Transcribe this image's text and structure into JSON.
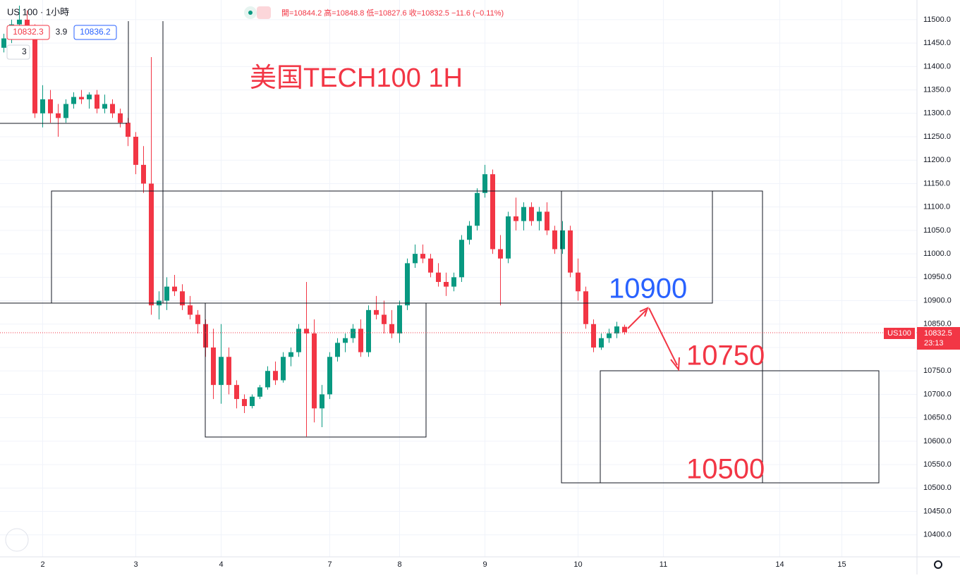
{
  "chart_data": {
    "type": "candlestick",
    "title": "美国TECH100 1H",
    "categories": [
      null,
      null,
      null,
      null,
      null,
      "2",
      null,
      null,
      null,
      null,
      null,
      null,
      null,
      null,
      null,
      null,
      null,
      "3",
      null,
      null,
      null,
      null,
      null,
      null,
      null,
      null,
      null,
      null,
      "4",
      null,
      null,
      null,
      null,
      null,
      null,
      null,
      null,
      null,
      null,
      null,
      null,
      null,
      "7",
      null,
      null,
      null,
      null,
      null,
      null,
      null,
      null,
      "8",
      null,
      null,
      null,
      null,
      null,
      null,
      null,
      null,
      null,
      null,
      "9",
      null,
      null,
      null,
      null,
      null,
      null,
      null,
      null,
      null,
      null,
      null,
      "10",
      null,
      null,
      null,
      null,
      null,
      null,
      null,
      null,
      null,
      null,
      "11",
      null,
      null,
      null,
      null,
      null,
      null,
      null,
      null,
      null,
      null,
      null,
      null,
      null,
      null,
      "14",
      null,
      null,
      null,
      null,
      null,
      null,
      null,
      "15",
      null,
      null,
      null,
      null,
      null,
      null,
      null,
      null,
      null
    ],
    "open": [
      11440,
      11460,
      11490,
      11500,
      11480,
      11300,
      11330,
      11300,
      11290,
      11320,
      11335,
      11330,
      11340,
      11310,
      11320,
      11300,
      11280,
      11250,
      11190,
      11150,
      10890,
      10900,
      10930,
      10920,
      10890,
      10870,
      10850,
      10800,
      10720,
      10780,
      10720,
      10690,
      10675,
      10695,
      10715,
      10750,
      10730,
      10780,
      10790,
      10840,
      10830,
      10670,
      10700,
      10780,
      10810,
      10820,
      10840,
      10790,
      10880,
      10870,
      10850,
      10830,
      10890,
      10980,
      11000,
      10990,
      10960,
      10940,
      10930,
      10950,
      11030,
      11060,
      11130,
      11170,
      11010,
      10990,
      11080,
      11070,
      11100,
      11070,
      11090,
      11050,
      11010,
      11050,
      10960,
      10920,
      10850,
      10800,
      10820,
      10830,
      10844.2,
      null,
      null,
      null,
      null,
      null,
      null,
      null,
      null,
      null,
      null,
      null,
      null,
      null,
      null,
      null,
      null,
      null,
      null,
      null,
      null,
      null,
      null,
      null,
      null,
      null,
      null,
      null,
      null,
      null,
      null,
      null,
      null,
      null,
      null,
      null,
      null,
      null
    ],
    "high": [
      11470,
      11500,
      11530,
      11520,
      11490,
      11360,
      11350,
      11320,
      11330,
      11345,
      11350,
      11345,
      11350,
      11340,
      11330,
      11310,
      11290,
      11260,
      11230,
      11420,
      10920,
      10950,
      10955,
      10935,
      10910,
      10880,
      10860,
      10840,
      10850,
      10800,
      10730,
      10700,
      10700,
      10720,
      10760,
      10770,
      10790,
      10800,
      10850,
      10940,
      10860,
      10720,
      10790,
      10820,
      10830,
      10850,
      10860,
      10890,
      10910,
      10900,
      10880,
      10900,
      10990,
      11020,
      11020,
      11000,
      10980,
      10960,
      10960,
      11040,
      11070,
      11140,
      11190,
      11180,
      11040,
      11090,
      11120,
      11110,
      11110,
      11100,
      11110,
      11060,
      11070,
      11060,
      10990,
      10930,
      10860,
      10830,
      10840,
      10855,
      10848.8,
      null,
      null,
      null,
      null,
      null,
      null,
      null,
      null,
      null,
      null,
      null,
      null,
      null,
      null,
      null,
      null,
      null,
      null,
      null,
      null,
      null,
      null,
      null,
      null,
      null,
      null,
      null,
      null,
      null,
      null,
      null,
      null,
      null,
      null,
      null,
      null,
      null
    ],
    "low": [
      11430,
      11450,
      11480,
      11470,
      11290,
      11270,
      11280,
      11250,
      11280,
      11310,
      11320,
      11310,
      11300,
      11300,
      11290,
      11270,
      11230,
      11170,
      11130,
      10870,
      10860,
      10880,
      10910,
      10880,
      10860,
      10830,
      10780,
      10690,
      10680,
      10700,
      10670,
      10660,
      10670,
      10690,
      10710,
      10720,
      10725,
      10760,
      10780,
      10610,
      10640,
      10630,
      10690,
      10770,
      10790,
      10810,
      10780,
      10780,
      10860,
      10830,
      10820,
      10810,
      10880,
      10970,
      10980,
      10950,
      10930,
      10910,
      10920,
      10940,
      11020,
      11050,
      11120,
      11000,
      10890,
      10980,
      11050,
      11050,
      11060,
      11050,
      11040,
      11000,
      11000,
      10950,
      10900,
      10840,
      10790,
      10795,
      10810,
      10820,
      10827.6,
      null,
      null,
      null,
      null,
      null,
      null,
      null,
      null,
      null,
      null,
      null,
      null,
      null,
      null,
      null,
      null,
      null,
      null,
      null,
      null,
      null,
      null,
      null,
      null,
      null,
      null,
      null,
      null,
      null,
      null,
      null,
      null,
      null,
      null,
      null,
      null,
      null
    ],
    "close": [
      11460,
      11490,
      11500,
      11480,
      11300,
      11330,
      11300,
      11290,
      11320,
      11335,
      11330,
      11340,
      11310,
      11320,
      11300,
      11280,
      11250,
      11190,
      11150,
      10890,
      10900,
      10930,
      10920,
      10890,
      10870,
      10850,
      10800,
      10720,
      10780,
      10720,
      10690,
      10675,
      10695,
      10715,
      10750,
      10730,
      10780,
      10790,
      10840,
      10830,
      10670,
      10700,
      10780,
      10810,
      10820,
      10840,
      10790,
      10880,
      10870,
      10850,
      10830,
      10890,
      10980,
      11000,
      10990,
      10960,
      10940,
      10930,
      10950,
      11030,
      11060,
      11130,
      11170,
      11010,
      10990,
      11080,
      11070,
      11100,
      11070,
      11090,
      11050,
      11010,
      11050,
      10960,
      10920,
      10850,
      10800,
      10820,
      10830,
      10845,
      10832.5,
      null,
      null,
      null,
      null,
      null,
      null,
      null,
      null,
      null,
      null,
      null,
      null,
      null,
      null,
      null,
      null,
      null,
      null,
      null,
      null,
      null,
      null,
      null,
      null,
      null,
      null,
      null,
      null,
      null,
      null,
      null,
      null,
      null,
      null,
      null,
      null,
      null
    ],
    "up_color": "#089981",
    "down_color": "#f23645",
    "ylim": [
      10353,
      11542
    ],
    "yticks": [
      {
        "value": 10400,
        "label": "10400.0"
      },
      {
        "value": 10450,
        "label": "10450.0"
      },
      {
        "value": 10500,
        "label": "10500.0"
      },
      {
        "value": 10550,
        "label": "10550.0"
      },
      {
        "value": 10600,
        "label": "10600.0"
      },
      {
        "value": 10650,
        "label": "10650.0"
      },
      {
        "value": 10700,
        "label": "10700.0"
      },
      {
        "value": 10750,
        "label": "10750.0"
      },
      {
        "value": 10800,
        "label": "10800.0"
      },
      {
        "value": 10850,
        "label": "10850.0"
      },
      {
        "value": 10900,
        "label": "10900.0"
      },
      {
        "value": 10950,
        "label": "10950.0"
      },
      {
        "value": 11000,
        "label": "11000.0"
      },
      {
        "value": 11050,
        "label": "11050.0"
      },
      {
        "value": 11100,
        "label": "11100.0"
      },
      {
        "value": 11150,
        "label": "11150.0"
      },
      {
        "value": 11200,
        "label": "11200.0"
      },
      {
        "value": 11250,
        "label": "11250.0"
      },
      {
        "value": 11300,
        "label": "11300.0"
      },
      {
        "value": 11350,
        "label": "11350.0"
      },
      {
        "value": 11400,
        "label": "11400.0"
      },
      {
        "value": 11450,
        "label": "11450.0"
      },
      {
        "value": 11500,
        "label": "11500.0"
      }
    ],
    "grid": true,
    "annotations": [
      "10900",
      "10750",
      "10500"
    ]
  },
  "ui": {
    "symbol": "US 100 · 1小時",
    "ohlc": "開=10844.2 高=10848.8 低=10827.6 收=10832.5 −11.6 (−0.11%)",
    "bid": "10832.3",
    "spread": "3.9",
    "ask": "10836.2",
    "indicators": "3",
    "badge": "US100",
    "last": "10832.5",
    "countdown": "23:13"
  }
}
